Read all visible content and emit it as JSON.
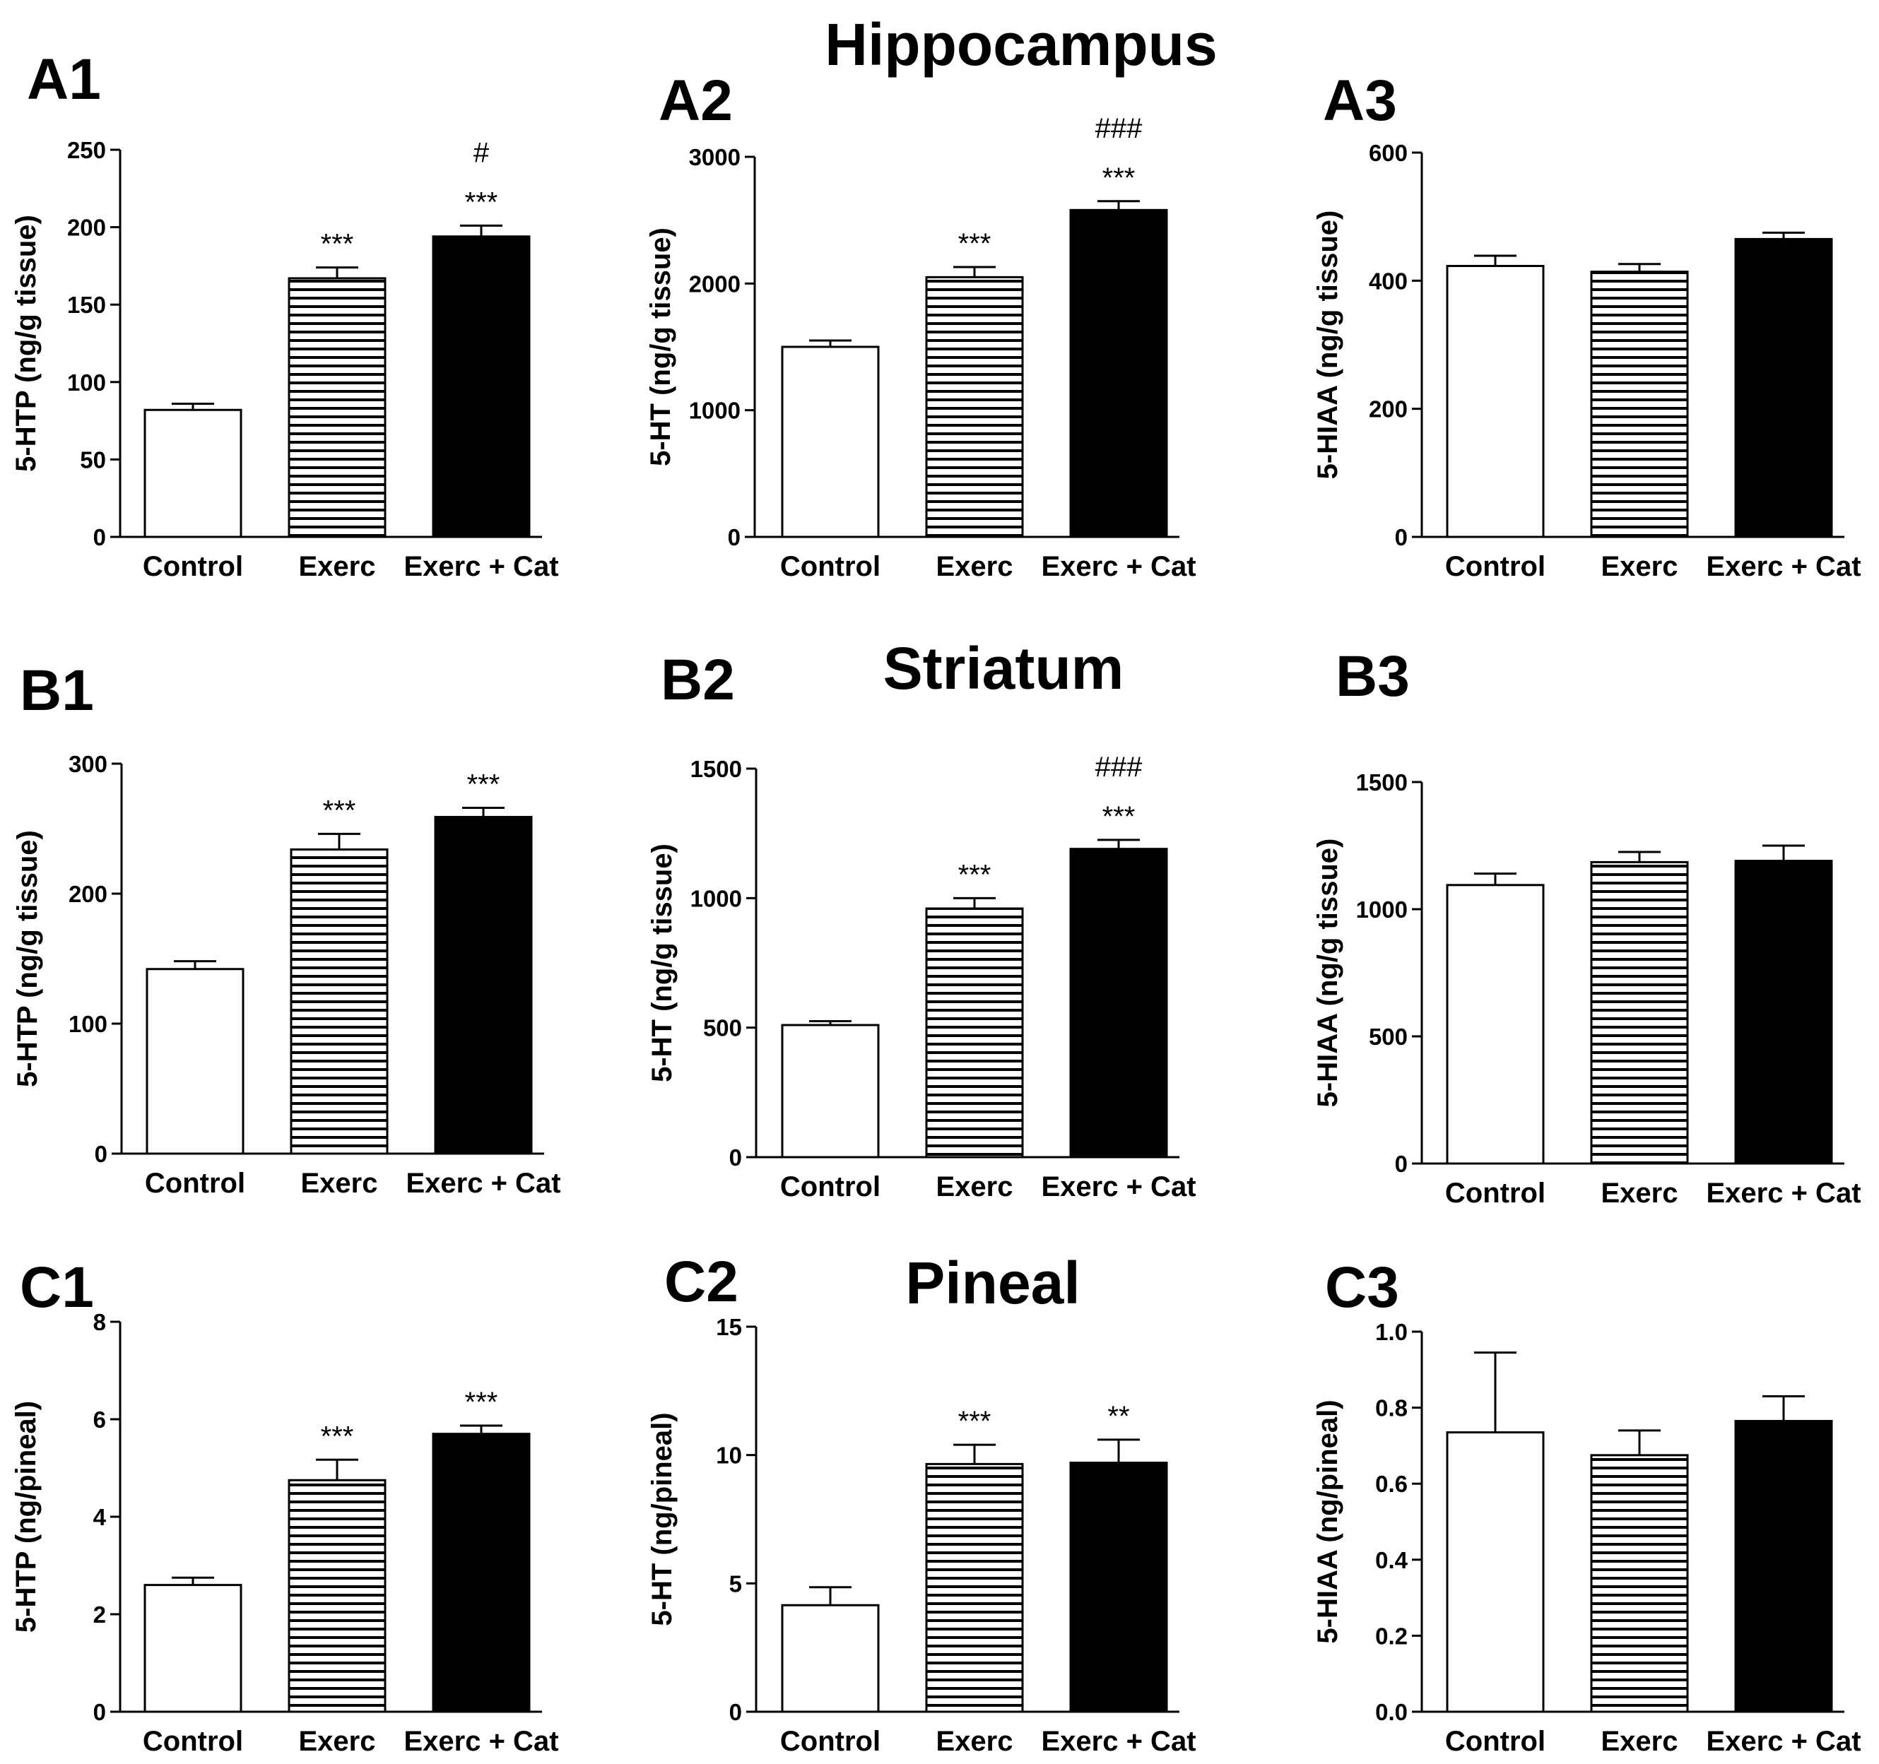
{
  "region_titles": {
    "hippocampus": "Hippocampus",
    "striatum": "Striatum",
    "pineal": "Pineal"
  },
  "colors": {
    "control_fill": "#ffffff",
    "exerc_stripe": "#000000",
    "exerc_cat_fill": "#000000",
    "axis": "#000000"
  },
  "chart_data": [
    {
      "id": "A1",
      "type": "bar",
      "label": "A1",
      "region": "Hippocampus",
      "ylabel": "5-HTP (ng/g tissue)",
      "categories": [
        "Control",
        "Exerc",
        "Exerc + Cat"
      ],
      "values": [
        82,
        167,
        194
      ],
      "errors": [
        4,
        7,
        7
      ],
      "significance": [
        [],
        [
          "***"
        ],
        [
          "***",
          "#"
        ]
      ],
      "ylim": [
        0,
        250
      ],
      "yticks": [
        "0",
        "50",
        "100",
        "150",
        "200",
        "250"
      ]
    },
    {
      "id": "A2",
      "type": "bar",
      "label": "A2",
      "region": "Hippocampus",
      "ylabel": "5-HT (ng/g tissue)",
      "categories": [
        "Control",
        "Exerc",
        "Exerc + Cat"
      ],
      "values": [
        1500,
        2050,
        2580
      ],
      "errors": [
        50,
        80,
        70
      ],
      "significance": [
        [],
        [
          "***"
        ],
        [
          "***",
          "###"
        ]
      ],
      "ylim": [
        0,
        3000
      ],
      "yticks": [
        "0",
        "1000",
        "2000",
        "3000"
      ]
    },
    {
      "id": "A3",
      "type": "bar",
      "label": "A3",
      "region": "Hippocampus",
      "ylabel": "5-HIAA (ng/g tissue)",
      "categories": [
        "Control",
        "Exerc",
        "Exerc + Cat"
      ],
      "values": [
        423,
        414,
        465
      ],
      "errors": [
        16,
        12,
        10
      ],
      "significance": [
        [],
        [],
        []
      ],
      "ylim": [
        0,
        600
      ],
      "yticks": [
        "0",
        "200",
        "400",
        "600"
      ]
    },
    {
      "id": "B1",
      "type": "bar",
      "label": "B1",
      "region": "Striatum",
      "ylabel": "5-HTP (ng/g tissue)",
      "categories": [
        "Control",
        "Exerc",
        "Exerc + Cat"
      ],
      "values": [
        142,
        234,
        259
      ],
      "errors": [
        6,
        12,
        7
      ],
      "significance": [
        [],
        [
          "***"
        ],
        [
          "***"
        ]
      ],
      "ylim": [
        0,
        300
      ],
      "yticks": [
        "0",
        "100",
        "200",
        "300"
      ]
    },
    {
      "id": "B2",
      "type": "bar",
      "label": "B2",
      "region": "Striatum",
      "ylabel": "5-HT (ng/g tissue)",
      "categories": [
        "Control",
        "Exerc",
        "Exerc + Cat"
      ],
      "values": [
        510,
        960,
        1190
      ],
      "errors": [
        15,
        40,
        35
      ],
      "significance": [
        [],
        [
          "***"
        ],
        [
          "***",
          "###"
        ]
      ],
      "ylim": [
        0,
        1500
      ],
      "yticks": [
        "0",
        "500",
        "1000",
        "1500"
      ]
    },
    {
      "id": "B3",
      "type": "bar",
      "label": "B3",
      "region": "Striatum",
      "ylabel": "5-HIAA (ng/g tissue)",
      "categories": [
        "Control",
        "Exerc",
        "Exerc + Cat"
      ],
      "values": [
        1095,
        1185,
        1190
      ],
      "errors": [
        45,
        40,
        60
      ],
      "significance": [
        [],
        [],
        []
      ],
      "ylim": [
        0,
        1500
      ],
      "yticks": [
        "0",
        "500",
        "1000",
        "1500"
      ]
    },
    {
      "id": "C1",
      "type": "bar",
      "label": "C1",
      "region": "Pineal",
      "ylabel": "5-HTP (ng/pineal)",
      "categories": [
        "Control",
        "Exerc",
        "Exerc + Cat"
      ],
      "values": [
        2.6,
        4.75,
        5.7
      ],
      "errors": [
        0.15,
        0.42,
        0.17
      ],
      "significance": [
        [],
        [
          "***"
        ],
        [
          "***"
        ]
      ],
      "ylim": [
        0,
        8
      ],
      "yticks": [
        "0",
        "2",
        "4",
        "6",
        "8"
      ]
    },
    {
      "id": "C2",
      "type": "bar",
      "label": "C2",
      "region": "Pineal",
      "ylabel": "5-HT (ng/pineal)",
      "categories": [
        "Control",
        "Exerc",
        "Exerc + Cat"
      ],
      "values": [
        4.15,
        9.65,
        9.7
      ],
      "errors": [
        0.7,
        0.75,
        0.9
      ],
      "significance": [
        [],
        [
          "***"
        ],
        [
          "**"
        ]
      ],
      "ylim": [
        0,
        15
      ],
      "yticks": [
        "0",
        "5",
        "10",
        "15"
      ]
    },
    {
      "id": "C3",
      "type": "bar",
      "label": "C3",
      "region": "Pineal",
      "ylabel": "5-HIAA (ng/pineal)",
      "categories": [
        "Control",
        "Exerc",
        "Exerc + Cat"
      ],
      "values": [
        0.735,
        0.675,
        0.765
      ],
      "errors": [
        0.21,
        0.065,
        0.065
      ],
      "significance": [
        [],
        [],
        []
      ],
      "ylim": [
        0,
        1.0
      ],
      "yticks": [
        "0.0",
        "0.2",
        "0.4",
        "0.6",
        "0.8",
        "1.0"
      ]
    }
  ]
}
